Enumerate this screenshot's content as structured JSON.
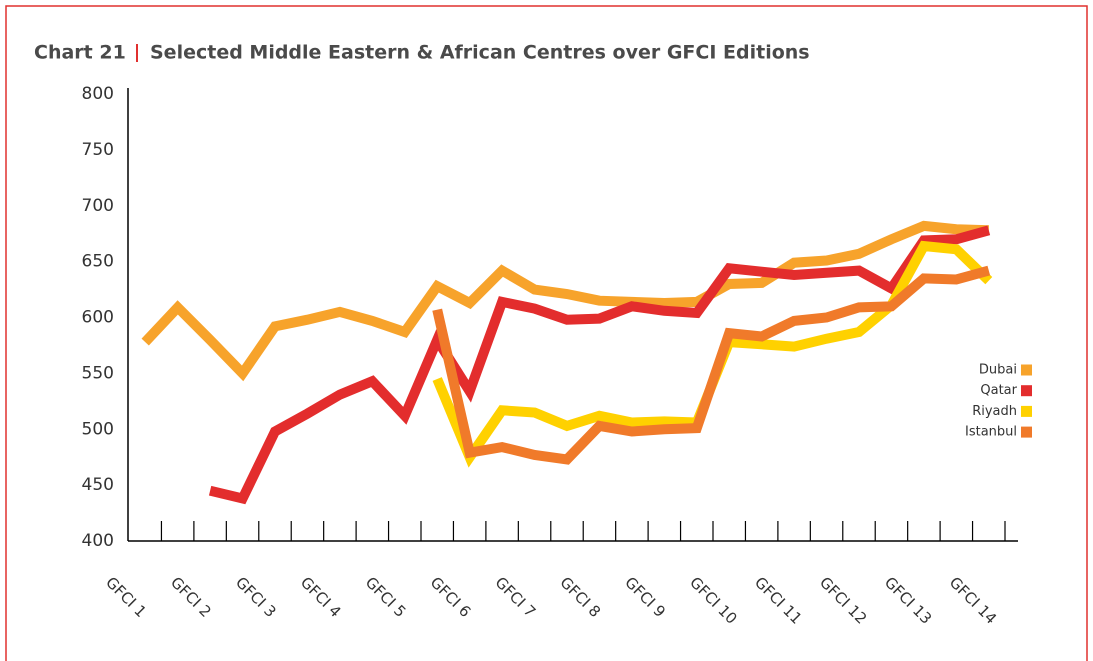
{
  "chart_data": {
    "type": "line",
    "title": "Chart 21",
    "subtitle": "Selected Middle Eastern & African Centres over GFCI Editions",
    "categories": [
      "GFCI 1",
      null,
      "GFCI 2",
      null,
      "GFCI 3",
      null,
      "GFCI 4",
      null,
      "GFCI 5",
      null,
      "GFCI 6",
      null,
      "GFCI 7",
      null,
      "GFCI 8",
      null,
      "GFCI 9",
      null,
      "GFCI 10",
      null,
      "GFCI 11",
      null,
      "GFCI 12",
      null,
      "GFCI 13",
      null,
      "GFCI 14"
    ],
    "series": [
      {
        "name": "Dubai",
        "color": "#f7a32b",
        "values": [
          578,
          609,
          580,
          550,
          592,
          598,
          605,
          597,
          587,
          628,
          613,
          642,
          625,
          621,
          615,
          614,
          613,
          614,
          630,
          631,
          649,
          651,
          657,
          670,
          682,
          679,
          678
        ]
      },
      {
        "name": "Qatar",
        "color": "#e32d2d",
        "values": [
          null,
          null,
          445,
          438,
          498,
          514,
          531,
          543,
          512,
          580,
          534,
          614,
          608,
          598,
          599,
          610,
          606,
          604,
          644,
          641,
          638,
          640,
          642,
          626,
          669,
          670,
          678
        ]
      },
      {
        "name": "Riyadh",
        "color": "#ffd100",
        "values": [
          null,
          null,
          null,
          null,
          null,
          null,
          null,
          null,
          null,
          545,
          475,
          517,
          515,
          503,
          512,
          506,
          507,
          506,
          578,
          576,
          574,
          581,
          587,
          611,
          664,
          661,
          633
        ]
      },
      {
        "name": "Istanbul",
        "color": "#f07a2a",
        "values": [
          null,
          null,
          null,
          null,
          null,
          null,
          null,
          null,
          null,
          607,
          479,
          484,
          477,
          473,
          503,
          498,
          500,
          501,
          586,
          583,
          597,
          600,
          609,
          610,
          635,
          634,
          642
        ]
      }
    ],
    "ylim": [
      400,
      800
    ],
    "yticks": [
      400,
      450,
      500,
      550,
      600,
      650,
      700,
      750,
      800
    ],
    "grid": false,
    "legend": "right"
  }
}
